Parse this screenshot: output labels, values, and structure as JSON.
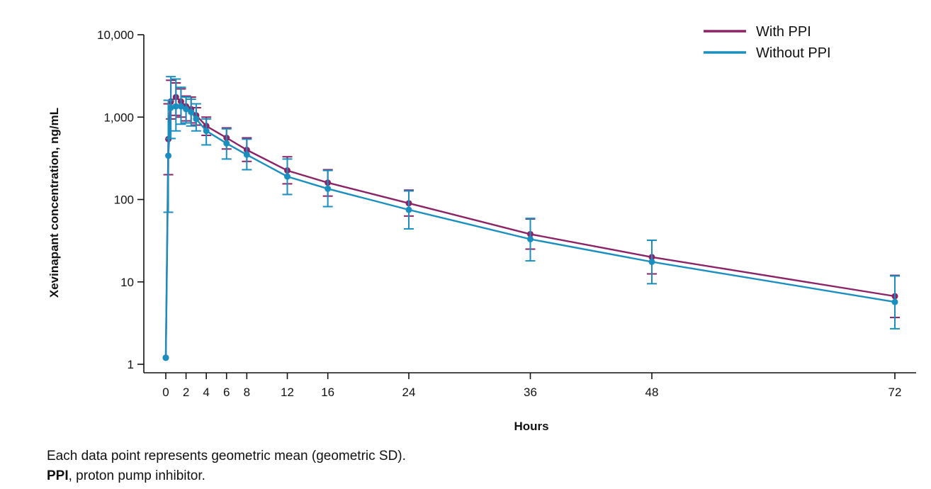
{
  "chart_data": {
    "type": "line",
    "xlabel": "Hours",
    "ylabel": "Xevinapant concentration, ng/mL",
    "y_scale": "log",
    "ylim": [
      1,
      10000
    ],
    "xlim": [
      0,
      72
    ],
    "x_ticks": [
      0,
      2,
      4,
      6,
      8,
      12,
      16,
      24,
      36,
      48,
      72
    ],
    "y_ticks": [
      1,
      10,
      100,
      1000,
      10000
    ],
    "y_tick_labels": [
      "1",
      "10",
      "100",
      "1,000",
      "10,000"
    ],
    "legend_position": "top-right",
    "grid": false,
    "error_bars": "geometric SD",
    "series": [
      {
        "name": "With PPI",
        "color": "#8B2466",
        "points": [
          {
            "x": 0,
            "y": 1.2
          },
          {
            "x": 0.25,
            "y": 540,
            "lo": 200,
            "hi": 1450
          },
          {
            "x": 0.5,
            "y": 1550,
            "lo": 950,
            "hi": 2800
          },
          {
            "x": 1,
            "y": 1750,
            "lo": 1050,
            "hi": 2600
          },
          {
            "x": 1.5,
            "y": 1550,
            "lo": 1000,
            "hi": 2200
          },
          {
            "x": 2,
            "y": 1350,
            "lo": 900,
            "hi": 1800
          },
          {
            "x": 2.5,
            "y": 1250,
            "lo": 850,
            "hi": 1750
          },
          {
            "x": 3,
            "y": 1050,
            "lo": 800,
            "hi": 1300
          },
          {
            "x": 4,
            "y": 780,
            "lo": 600,
            "hi": 1000
          },
          {
            "x": 6,
            "y": 560,
            "lo": 410,
            "hi": 740
          },
          {
            "x": 8,
            "y": 400,
            "lo": 290,
            "hi": 560
          },
          {
            "x": 12,
            "y": 225,
            "lo": 155,
            "hi": 330
          },
          {
            "x": 16,
            "y": 160,
            "lo": 110,
            "hi": 230
          },
          {
            "x": 24,
            "y": 90,
            "lo": 63,
            "hi": 130
          },
          {
            "x": 36,
            "y": 38,
            "lo": 25,
            "hi": 58
          },
          {
            "x": 48,
            "y": 20,
            "lo": 12.5,
            "hi": 32
          },
          {
            "x": 72,
            "y": 6.7,
            "lo": 3.7,
            "hi": 12
          }
        ]
      },
      {
        "name": "Without PPI",
        "color": "#1A8FBF",
        "points": [
          {
            "x": 0,
            "y": 1.2
          },
          {
            "x": 0.25,
            "y": 340,
            "lo": 70,
            "hi": 1600
          },
          {
            "x": 0.5,
            "y": 1300,
            "lo": 550,
            "hi": 3100
          },
          {
            "x": 1,
            "y": 1350,
            "lo": 680,
            "hi": 2900
          },
          {
            "x": 1.5,
            "y": 1350,
            "lo": 820,
            "hi": 2300
          },
          {
            "x": 2,
            "y": 1250,
            "lo": 850,
            "hi": 1750
          },
          {
            "x": 2.5,
            "y": 1150,
            "lo": 780,
            "hi": 1650
          },
          {
            "x": 3,
            "y": 950,
            "lo": 680,
            "hi": 1450
          },
          {
            "x": 4,
            "y": 680,
            "lo": 460,
            "hi": 950
          },
          {
            "x": 6,
            "y": 480,
            "lo": 310,
            "hi": 720
          },
          {
            "x": 8,
            "y": 350,
            "lo": 230,
            "hi": 540
          },
          {
            "x": 12,
            "y": 190,
            "lo": 115,
            "hi": 310
          },
          {
            "x": 16,
            "y": 135,
            "lo": 82,
            "hi": 225
          },
          {
            "x": 24,
            "y": 75,
            "lo": 44,
            "hi": 127
          },
          {
            "x": 36,
            "y": 33,
            "lo": 18,
            "hi": 59
          },
          {
            "x": 48,
            "y": 17.5,
            "lo": 9.5,
            "hi": 32
          },
          {
            "x": 72,
            "y": 5.7,
            "lo": 2.7,
            "hi": 11.8
          }
        ]
      }
    ]
  },
  "footnotes": {
    "line1": "Each data point represents geometric mean (geometric SD).",
    "line2_bold": "PPI",
    "line2_rest": ", proton pump inhibitor."
  }
}
